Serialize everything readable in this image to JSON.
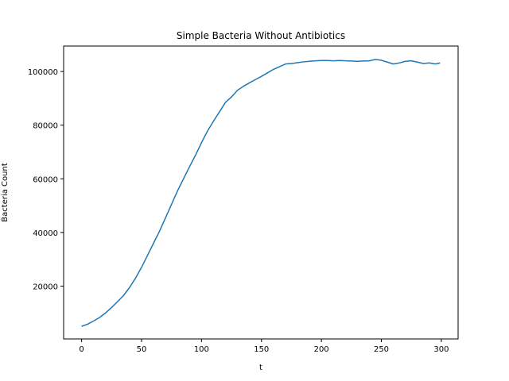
{
  "chart_data": {
    "type": "line",
    "title": "Simple Bacteria Without Antibiotics",
    "xlabel": "t",
    "ylabel": "Bacteria Count",
    "xlim": [
      -15,
      314
    ],
    "ylim": [
      300,
      109500
    ],
    "xticks": [
      0,
      50,
      100,
      150,
      200,
      250,
      300
    ],
    "yticks": [
      20000,
      40000,
      60000,
      80000,
      100000
    ],
    "xtick_labels": [
      "0",
      "50",
      "100",
      "150",
      "200",
      "250",
      "300"
    ],
    "ytick_labels": [
      "20000",
      "40000",
      "60000",
      "80000",
      "100000"
    ],
    "grid": false,
    "line_color": "#1f77b4",
    "series": [
      {
        "x": [
          0,
          5,
          10,
          15,
          20,
          25,
          30,
          35,
          40,
          45,
          50,
          55,
          60,
          65,
          70,
          75,
          80,
          85,
          90,
          95,
          100,
          105,
          110,
          115,
          120,
          125,
          130,
          135,
          140,
          145,
          150,
          155,
          160,
          165,
          170,
          175,
          180,
          185,
          190,
          195,
          200,
          205,
          210,
          215,
          220,
          225,
          230,
          235,
          240,
          245,
          250,
          255,
          260,
          265,
          270,
          275,
          280,
          285,
          290,
          295,
          299
        ],
        "values": [
          5000,
          5800,
          7000,
          8300,
          10000,
          12000,
          14200,
          16500,
          19500,
          23000,
          27000,
          31500,
          36000,
          40500,
          45500,
          50500,
          55500,
          60000,
          64500,
          68800,
          73500,
          77800,
          81500,
          85000,
          88500,
          90500,
          93000,
          94500,
          95800,
          97000,
          98200,
          99500,
          100800,
          101800,
          102800,
          103000,
          103300,
          103600,
          103800,
          104000,
          104100,
          104100,
          104000,
          104100,
          104000,
          103900,
          103800,
          103900,
          104000,
          104500,
          104200,
          103500,
          102800,
          103200,
          103800,
          104000,
          103500,
          103000,
          103200,
          102800,
          103200
        ]
      }
    ]
  }
}
